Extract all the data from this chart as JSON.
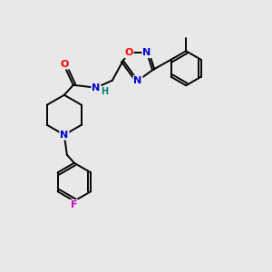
{
  "background_color": "#e8e8e8",
  "bond_color": "#000000",
  "atom_colors": {
    "N": "#0000cc",
    "O": "#ff0000",
    "F": "#cc00cc",
    "H": "#008080",
    "C": "#000000"
  },
  "font_size_atom": 8,
  "figsize": [
    3.0,
    3.0
  ],
  "dpi": 100
}
